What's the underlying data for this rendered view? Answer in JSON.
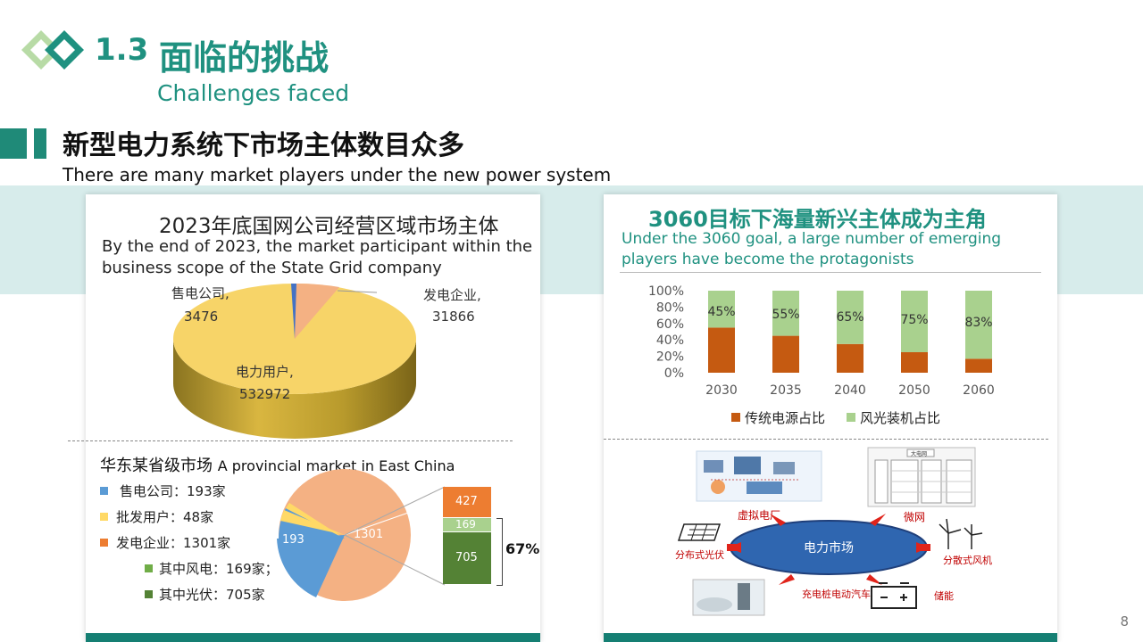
{
  "header": {
    "section_number": "1.3",
    "section_title": "面临的挑战",
    "section_subtitle": "Challenges faced",
    "heading": "新型电力系统下市场主体数目众多",
    "heading_sub": "There are many market players under the new power system"
  },
  "left_top": {
    "title": "2023年底国网公司经营区域市场主体",
    "subtitle_line1": "By the end of 2023, the market participant within the",
    "subtitle_line2": "business scope of the State Grid company",
    "labels": {
      "sales_name": "售电公司,",
      "sales_value": "3476",
      "gen_name": "发电企业,",
      "gen_value": "31866",
      "user_name": "电力用户,",
      "user_value": "532972"
    }
  },
  "left_bottom": {
    "title": "华东某省级市场",
    "title_en": "A provincial market in East China",
    "legend": [
      {
        "text": "售电公司：193家",
        "color": "#5b9bd5"
      },
      {
        "text": "批发用户：48家",
        "color": "#ffd966"
      },
      {
        "text": "发电企业：1301家",
        "color": "#ed7d31"
      },
      {
        "text": "其中风电：169家；",
        "color": "#70ad47"
      },
      {
        "text": "其中光伏：705家",
        "color": "#548235"
      }
    ],
    "pie_labels": {
      "sales": "193",
      "gen": "1301"
    },
    "stack_labels": {
      "other": "427",
      "wind": "169",
      "solar": "705"
    },
    "bracket_label": "67%"
  },
  "right_top": {
    "title": "3060目标下海量新兴主体成为主角",
    "subtitle_line1": "Under the 3060 goal, a large number of emerging",
    "subtitle_line2": "players have become the protagonists"
  },
  "chart_data": [
    {
      "type": "pie",
      "title": "2023年底国网公司经营区域市场主体",
      "slices": [
        {
          "name": "电力用户",
          "value": 532972,
          "color": "#f7d468"
        },
        {
          "name": "售电公司",
          "value": 3476,
          "color": "#4472c4"
        },
        {
          "name": "发电企业",
          "value": 31866,
          "color": "#f4b183"
        }
      ]
    },
    {
      "type": "pie",
      "title": "华东某省级市场",
      "slices": [
        {
          "name": "售电公司",
          "value": 193,
          "color": "#5b9bd5"
        },
        {
          "name": "批发用户",
          "value": 48,
          "color": "#ffd966"
        },
        {
          "name": "发电企业",
          "value": 1301,
          "color": "#f4b183"
        }
      ]
    },
    {
      "type": "bar",
      "stacked": true,
      "categories": [
        "2030",
        "2035",
        "2040",
        "2050",
        "2060"
      ],
      "series": [
        {
          "name": "传统电源占比",
          "values": [
            55,
            45,
            35,
            25,
            17
          ],
          "color": "#c55a11"
        },
        {
          "name": "风光装机占比",
          "values": [
            45,
            55,
            65,
            75,
            83
          ],
          "color": "#a9d18e"
        }
      ],
      "data_labels": [
        "45%",
        "55%",
        "65%",
        "75%",
        "83%"
      ],
      "yticks": [
        "100%",
        "80%",
        "60%",
        "40%",
        "20%",
        "0%"
      ],
      "ylim": [
        0,
        100
      ],
      "legend_position": "bottom"
    }
  ],
  "diagram": {
    "center": "电力市场",
    "nodes": [
      "虚拟电厂",
      "微网",
      "分布式光伏",
      "分散式风机",
      "充电桩电动汽车",
      "储能"
    ],
    "microgrid_top": "大电网"
  },
  "page_number": "8"
}
